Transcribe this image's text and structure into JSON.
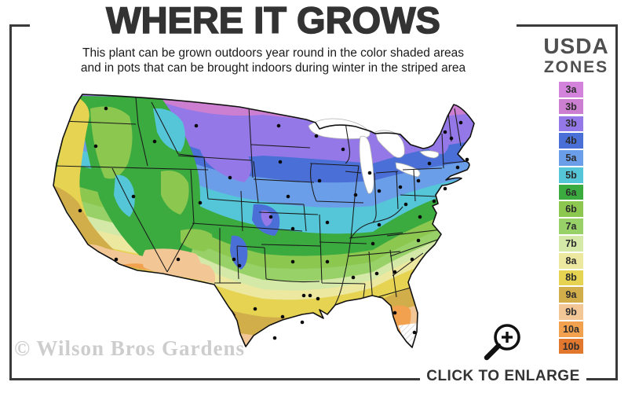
{
  "header": {
    "title": "WHERE IT GROWS",
    "subtitle_line1": "This plant can be grown outdoors year round in the color shaded areas",
    "subtitle_line2": "and in pots that can be brought indoors during winter in the striped area"
  },
  "legend": {
    "title_line1": "USDA",
    "title_line2": "ZONES",
    "zones": [
      {
        "label": "3a",
        "color": "#d383dc"
      },
      {
        "label": "3b",
        "color": "#cc7fd1"
      },
      {
        "label": "3b",
        "color": "#9478e8"
      },
      {
        "label": "4b",
        "color": "#4a6fd6"
      },
      {
        "label": "5a",
        "color": "#6b9ee8"
      },
      {
        "label": "5b",
        "color": "#54c6d8"
      },
      {
        "label": "6a",
        "color": "#3baa3f"
      },
      {
        "label": "6b",
        "color": "#8cc750"
      },
      {
        "label": "7a",
        "color": "#97d168"
      },
      {
        "label": "7b",
        "color": "#d4e9a8"
      },
      {
        "label": "8a",
        "color": "#ede8a0"
      },
      {
        "label": "8b",
        "color": "#e5d351"
      },
      {
        "label": "9a",
        "color": "#d2ae4a"
      },
      {
        "label": "9b",
        "color": "#f3c795"
      },
      {
        "label": "10a",
        "color": "#f2a14e"
      },
      {
        "label": "10b",
        "color": "#e2782e"
      }
    ]
  },
  "map": {
    "watermark": "© Wilson Bros Gardens",
    "region": "Continental United States"
  },
  "footer": {
    "cta": "CLICK TO ENLARGE",
    "cta_icon": "zoom-in-magnifier"
  }
}
